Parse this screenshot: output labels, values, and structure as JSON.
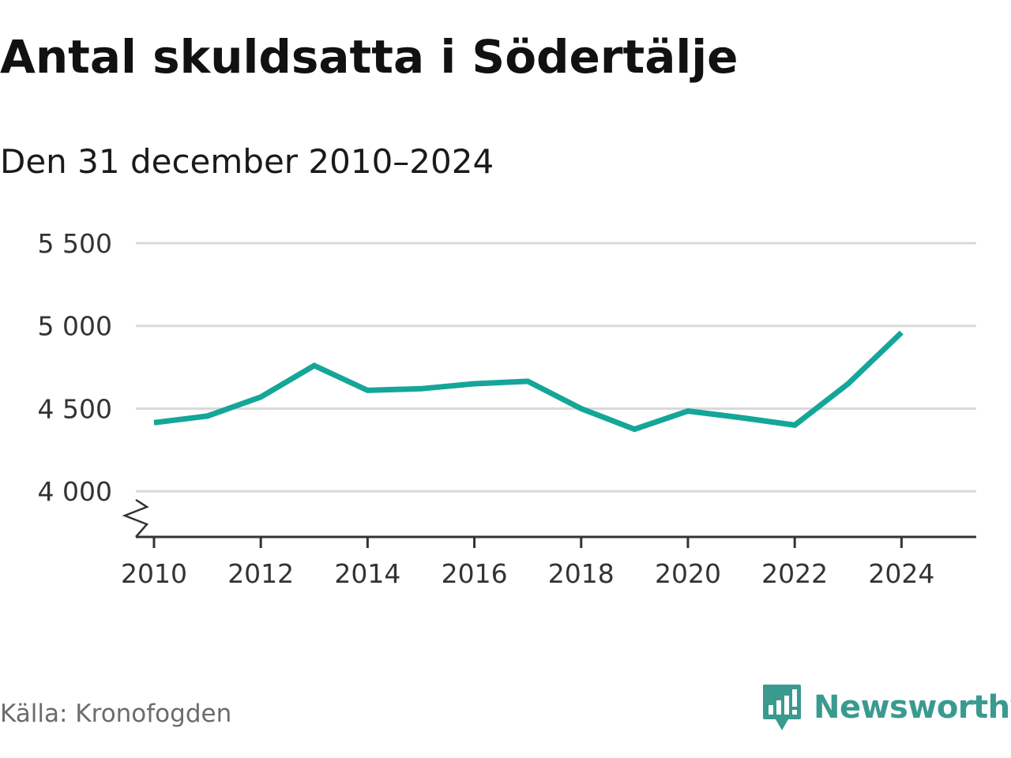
{
  "title": "Antal skuldsatta i Södertälje",
  "subtitle": "Den 31 december 2010–2024",
  "source": "Källa: Kronofogden",
  "brand": {
    "name": "Newsworthy",
    "logo_icon": "newsworthy-chart-logo-icon",
    "color": "#3a9a8f"
  },
  "colors": {
    "line": "#14a699",
    "grid": "#d9d9d9",
    "axis": "#333333"
  },
  "chart_data": {
    "type": "line",
    "title": "Antal skuldsatta i Södertälje",
    "subtitle": "Den 31 december 2010–2024",
    "xlabel": "",
    "ylabel": "",
    "x": [
      2010,
      2011,
      2012,
      2013,
      2014,
      2015,
      2016,
      2017,
      2018,
      2019,
      2020,
      2021,
      2022,
      2023,
      2024
    ],
    "series": [
      {
        "name": "Antal skuldsatta",
        "values": [
          4415,
          4455,
          4570,
          4760,
          4610,
          4620,
          4650,
          4665,
          4500,
          4375,
          4485,
          4445,
          4400,
          4650,
          4960
        ]
      }
    ],
    "xlim": [
      2009.66,
      2025.4
    ],
    "ylim": [
      3724,
      5500
    ],
    "axis_break": true,
    "y_ticks": [
      {
        "value": 5500,
        "label": "5 500"
      },
      {
        "value": 5000,
        "label": "5 000"
      },
      {
        "value": 4500,
        "label": "4 500"
      },
      {
        "value": 4000,
        "label": "4 000"
      }
    ],
    "x_ticks": [
      {
        "value": 2010,
        "label": "2010"
      },
      {
        "value": 2012,
        "label": "2012"
      },
      {
        "value": 2014,
        "label": "2014"
      },
      {
        "value": 2016,
        "label": "2016"
      },
      {
        "value": 2018,
        "label": "2018"
      },
      {
        "value": 2020,
        "label": "2020"
      },
      {
        "value": 2022,
        "label": "2022"
      },
      {
        "value": 2024,
        "label": "2024"
      }
    ],
    "grid": true,
    "legend": "none"
  }
}
